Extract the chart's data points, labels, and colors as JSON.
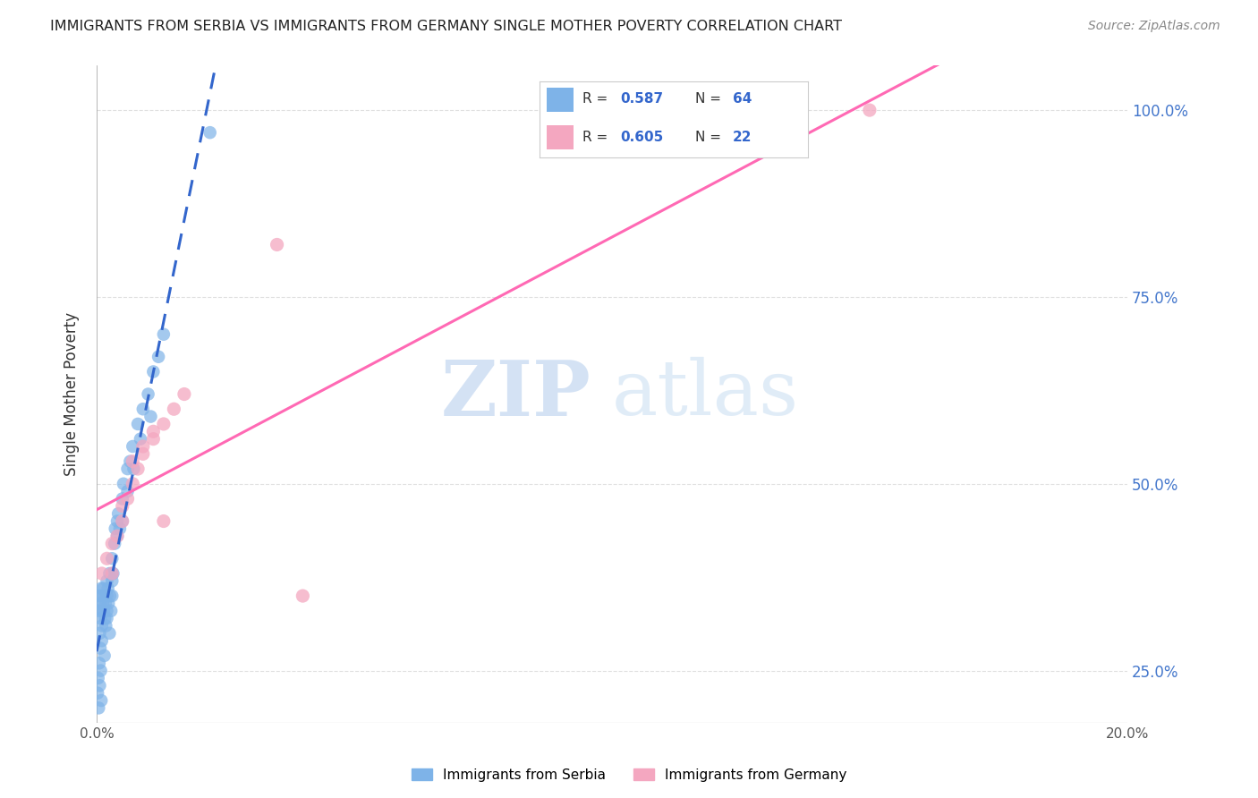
{
  "title": "IMMIGRANTS FROM SERBIA VS IMMIGRANTS FROM GERMANY SINGLE MOTHER POVERTY CORRELATION CHART",
  "source": "Source: ZipAtlas.com",
  "ylabel": "Single Mother Poverty",
  "xlim": [
    0.0,
    0.2
  ],
  "ylim": [
    0.18,
    1.06
  ],
  "ytick_values": [
    0.25,
    0.5,
    0.75,
    1.0
  ],
  "ytick_labels": [
    "25.0%",
    "50.0%",
    "75.0%",
    "100.0%"
  ],
  "xtick_values": [
    0.0,
    0.02,
    0.04,
    0.06,
    0.08,
    0.1,
    0.12,
    0.14,
    0.16,
    0.18,
    0.2
  ],
  "xtick_labels": [
    "0.0%",
    "",
    "",
    "",
    "",
    "",
    "",
    "",
    "",
    "",
    "20.0%"
  ],
  "serbia_color": "#7EB3E8",
  "germany_color": "#F4A7C0",
  "serbia_line_color": "#3366CC",
  "germany_line_color": "#FF69B4",
  "serbia_R": 0.587,
  "serbia_N": 64,
  "germany_R": 0.605,
  "germany_N": 22,
  "serbia_x": [
    0.0003,
    0.0005,
    0.0006,
    0.0007,
    0.0008,
    0.0009,
    0.001,
    0.001,
    0.001,
    0.0012,
    0.0013,
    0.0014,
    0.0015,
    0.0016,
    0.0017,
    0.0018,
    0.002,
    0.002,
    0.002,
    0.0022,
    0.0023,
    0.0025,
    0.0026,
    0.0028,
    0.003,
    0.003,
    0.003,
    0.0032,
    0.0035,
    0.0036,
    0.004,
    0.004,
    0.0042,
    0.0045,
    0.005,
    0.005,
    0.0052,
    0.006,
    0.006,
    0.0065,
    0.007,
    0.0072,
    0.008,
    0.0085,
    0.009,
    0.01,
    0.0105,
    0.011,
    0.012,
    0.013,
    0.0002,
    0.0003,
    0.0004,
    0.0005,
    0.0006,
    0.0007,
    0.0008,
    0.0009,
    0.001,
    0.0015,
    0.002,
    0.0025,
    0.003,
    0.022
  ],
  "serbia_y": [
    0.33,
    0.35,
    0.3,
    0.34,
    0.32,
    0.36,
    0.35,
    0.33,
    0.31,
    0.34,
    0.36,
    0.33,
    0.35,
    0.32,
    0.34,
    0.31,
    0.37,
    0.35,
    0.33,
    0.36,
    0.34,
    0.38,
    0.35,
    0.33,
    0.4,
    0.37,
    0.35,
    0.38,
    0.42,
    0.44,
    0.45,
    0.43,
    0.46,
    0.44,
    0.48,
    0.45,
    0.5,
    0.52,
    0.49,
    0.53,
    0.55,
    0.52,
    0.58,
    0.56,
    0.6,
    0.62,
    0.59,
    0.65,
    0.67,
    0.7,
    0.22,
    0.24,
    0.2,
    0.26,
    0.23,
    0.28,
    0.25,
    0.21,
    0.29,
    0.27,
    0.32,
    0.3,
    0.38,
    0.97
  ],
  "germany_x": [
    0.001,
    0.002,
    0.003,
    0.003,
    0.004,
    0.005,
    0.006,
    0.007,
    0.008,
    0.009,
    0.011,
    0.013,
    0.015,
    0.017,
    0.005,
    0.007,
    0.009,
    0.011,
    0.013,
    0.04,
    0.15,
    0.035
  ],
  "germany_y": [
    0.38,
    0.4,
    0.42,
    0.38,
    0.43,
    0.45,
    0.48,
    0.5,
    0.52,
    0.54,
    0.56,
    0.58,
    0.6,
    0.62,
    0.47,
    0.53,
    0.55,
    0.57,
    0.45,
    0.35,
    1.0,
    0.82
  ],
  "watermark_zip": "ZIP",
  "watermark_atlas": "atlas",
  "background_color": "#ffffff",
  "grid_color": "#e0e0e0",
  "legend_label_serbia": "Immigrants from Serbia",
  "legend_label_germany": "Immigrants from Germany"
}
